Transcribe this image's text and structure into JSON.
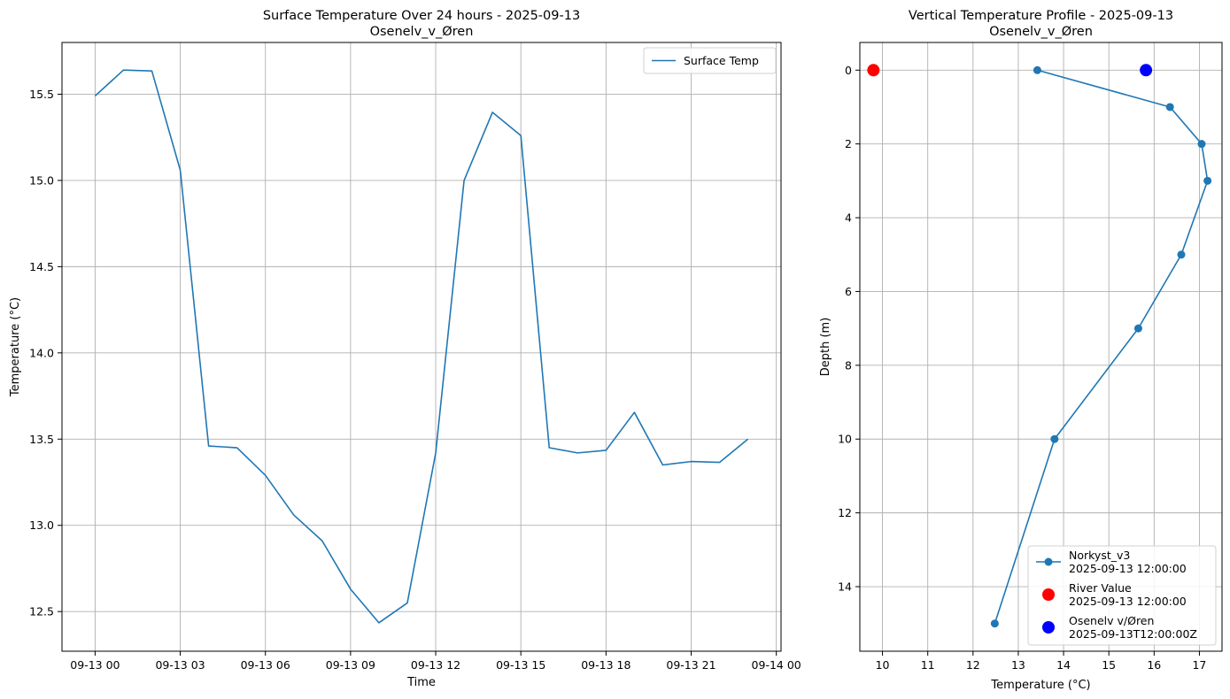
{
  "chart_data": [
    {
      "type": "line",
      "title": "Surface Temperature Over 24 hours - 2025-09-13",
      "subtitle": "Osenelv_v_Øren",
      "xlabel": "Time",
      "ylabel": "Temperature (°C)",
      "xlim": [
        "2025-09-12 22:50",
        "2025-09-14 00:10"
      ],
      "ylim": [
        12.27,
        15.8
      ],
      "grid": true,
      "legend_position": "top-right",
      "x_ticks": [
        "2025-09-13 00:00",
        "2025-09-13 03:00",
        "2025-09-13 06:00",
        "2025-09-13 09:00",
        "2025-09-13 12:00",
        "2025-09-13 15:00",
        "2025-09-13 18:00",
        "2025-09-13 21:00",
        "2025-09-14 00:00"
      ],
      "x_tick_labels": [
        "09-13 00",
        "09-13 03",
        "09-13 06",
        "09-13 09",
        "09-13 12",
        "09-13 15",
        "09-13 18",
        "09-13 21",
        "09-14 00"
      ],
      "y_ticks": [
        12.5,
        13.0,
        13.5,
        14.0,
        14.5,
        15.0,
        15.5
      ],
      "y_tick_labels": [
        "12.5",
        "13.0",
        "13.5",
        "14.0",
        "14.5",
        "15.0",
        "15.5"
      ],
      "series": [
        {
          "name": "Surface Temp",
          "color": "#1f77b4",
          "x": [
            "2025-09-13 00:00",
            "2025-09-13 01:00",
            "2025-09-13 02:00",
            "2025-09-13 03:00",
            "2025-09-13 04:00",
            "2025-09-13 05:00",
            "2025-09-13 06:00",
            "2025-09-13 07:00",
            "2025-09-13 08:00",
            "2025-09-13 09:00",
            "2025-09-13 10:00",
            "2025-09-13 11:00",
            "2025-09-13 12:00",
            "2025-09-13 13:00",
            "2025-09-13 14:00",
            "2025-09-13 15:00",
            "2025-09-13 16:00",
            "2025-09-13 17:00",
            "2025-09-13 18:00",
            "2025-09-13 19:00",
            "2025-09-13 20:00",
            "2025-09-13 21:00",
            "2025-09-13 22:00",
            "2025-09-13 23:00"
          ],
          "y": [
            15.49,
            15.64,
            15.635,
            15.06,
            13.46,
            13.45,
            13.29,
            13.06,
            12.91,
            12.63,
            12.435,
            12.55,
            13.42,
            15.0,
            15.395,
            15.26,
            13.45,
            13.42,
            13.435,
            13.655,
            13.35,
            13.37,
            13.365,
            13.5
          ]
        }
      ]
    },
    {
      "type": "line",
      "title": "Vertical Temperature Profile - 2025-09-13",
      "subtitle": "Osenelv_v_Øren",
      "xlabel": "Temperature (°C)",
      "ylabel": "Depth (m)",
      "xlim": [
        9.5,
        17.5
      ],
      "ylim": [
        15.75,
        -0.75
      ],
      "y_inverted": true,
      "grid": true,
      "legend_position": "bottom-right",
      "x_ticks": [
        10,
        11,
        12,
        13,
        14,
        15,
        16,
        17
      ],
      "x_tick_labels": [
        "10",
        "11",
        "12",
        "13",
        "14",
        "15",
        "16",
        "17"
      ],
      "y_ticks": [
        0,
        2,
        4,
        6,
        8,
        10,
        12,
        14
      ],
      "y_tick_labels": [
        "0",
        "2",
        "4",
        "6",
        "8",
        "10",
        "12",
        "14"
      ],
      "series": [
        {
          "name": "Norkyst_v3",
          "legend_time": "2025-09-13 12:00:00",
          "color": "#1f77b4",
          "marker": "line-dot",
          "x": [
            13.42,
            16.35,
            17.05,
            17.18,
            16.6,
            15.65,
            13.8,
            12.48
          ],
          "y": [
            0,
            1,
            2,
            3,
            5,
            7,
            10,
            15
          ]
        },
        {
          "name": "River Value",
          "legend_time": "2025-09-13 12:00:00",
          "color": "#ff0000",
          "marker": "large-dot",
          "x": [
            9.8
          ],
          "y": [
            0
          ]
        },
        {
          "name": "Osenelv v/Øren",
          "legend_time": "2025-09-13T12:00:00Z",
          "color": "#0000ff",
          "marker": "large-dot",
          "x": [
            15.82
          ],
          "y": [
            0
          ]
        }
      ]
    }
  ]
}
